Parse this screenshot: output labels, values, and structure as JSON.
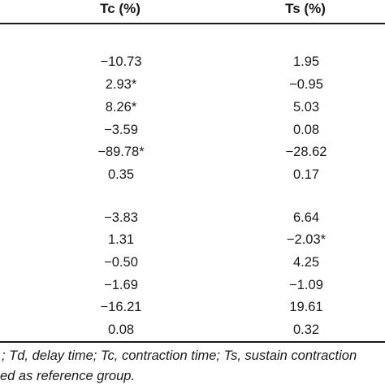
{
  "header": {
    "tc": "Tc (%)",
    "ts": "Ts (%)"
  },
  "rows": [
    {
      "tc": "−10.73",
      "ts": "1.95"
    },
    {
      "tc": "2.93*",
      "ts": "−0.95"
    },
    {
      "tc": "8.26*",
      "ts": "5.03"
    },
    {
      "tc": "−3.59",
      "ts": "0.08"
    },
    {
      "tc": "−89.78*",
      "ts": "−28.62"
    },
    {
      "tc": "0.35",
      "ts": "0.17"
    },
    {
      "tc": "−3.83",
      "ts": "6.64"
    },
    {
      "tc": "1.31",
      "ts": "−2.03*"
    },
    {
      "tc": "−0.50",
      "ts": "4.25"
    },
    {
      "tc": "−1.69",
      "ts": "−1.09"
    },
    {
      "tc": "−16.21",
      "ts": "19.61"
    },
    {
      "tc": "0.08",
      "ts": "0.32"
    }
  ],
  "footnote": {
    "line1": "; Td, delay time; Tc, contraction time; Ts, sustain contraction",
    "line2": "ed as reference group."
  }
}
